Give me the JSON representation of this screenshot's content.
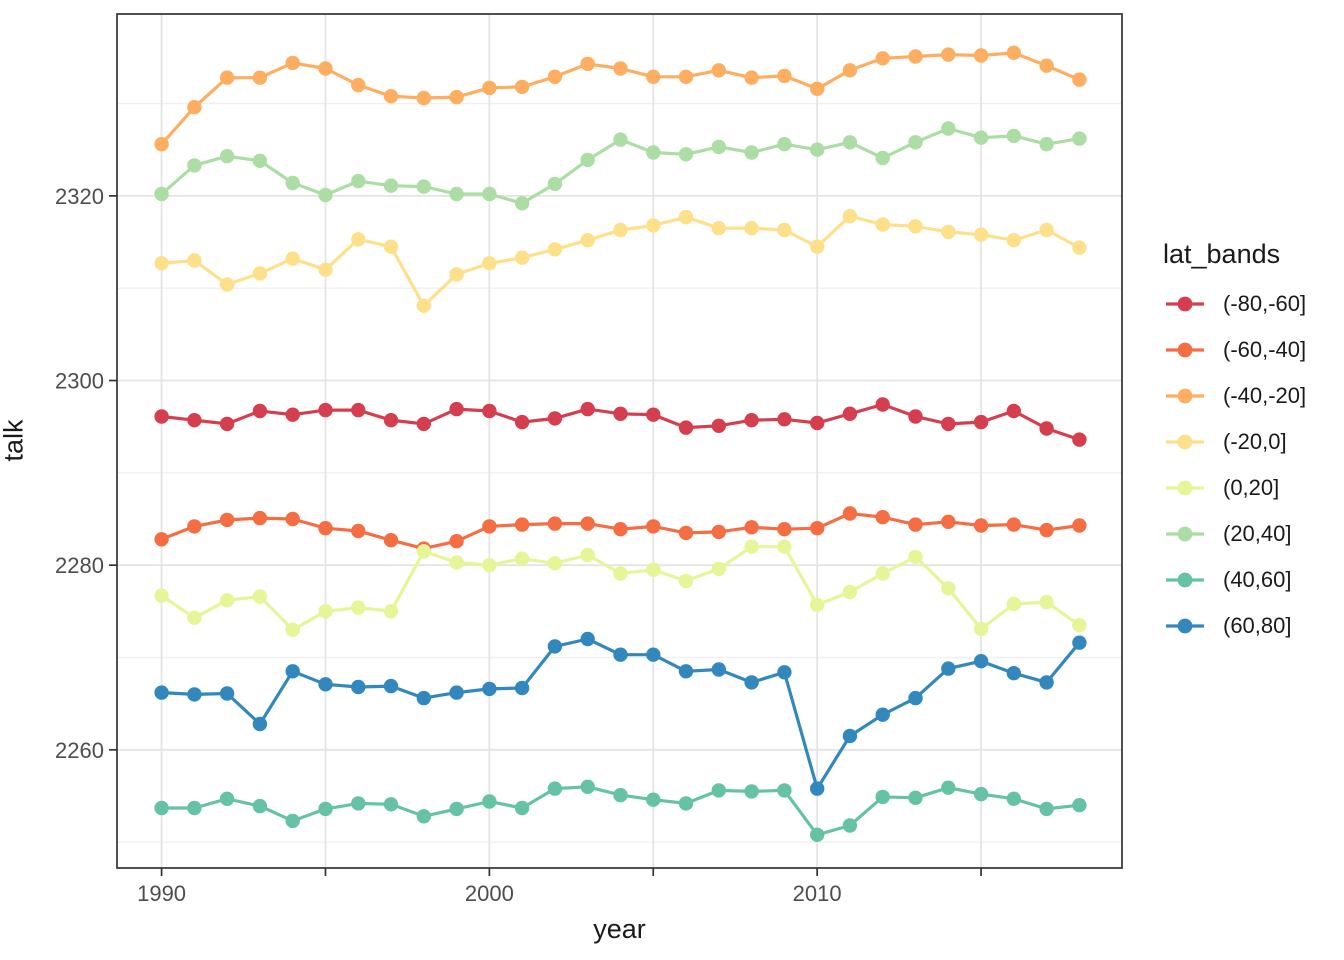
{
  "figure": {
    "background": "#ffffff",
    "panel_border_color": "#333333",
    "grid_major_color": "#e4e4e4",
    "grid_minor_color": "#f0f0f0",
    "tick_color": "#333333",
    "tick_label_color": "#4d4d4d",
    "title_color": "#1a1a1a"
  },
  "chart_data": {
    "type": "line",
    "title": "",
    "xlabel": "year",
    "ylabel": "talk",
    "legend_title": "lat_bands",
    "legend_position": "right",
    "grid": "on",
    "marker": "point",
    "x_range": [
      1988.64,
      2019.3
    ],
    "y_range": [
      2247.2,
      2339.7
    ],
    "x_ticks": [
      {
        "value": 1990,
        "label": "1990"
      },
      {
        "value": 1995,
        "label": ""
      },
      {
        "value": 2000,
        "label": "2000"
      },
      {
        "value": 2005,
        "label": ""
      },
      {
        "value": 2010,
        "label": "2010"
      },
      {
        "value": 2015,
        "label": ""
      }
    ],
    "y_ticks": [
      {
        "value": 2260,
        "label": "2260"
      },
      {
        "value": 2280,
        "label": "2280"
      },
      {
        "value": 2300,
        "label": "2300"
      },
      {
        "value": 2320,
        "label": "2320"
      }
    ],
    "y_minor_gridlines": [
      2250,
      2270,
      2290,
      2310,
      2330
    ],
    "x": [
      1990,
      1991,
      1992,
      1993,
      1994,
      1995,
      1996,
      1997,
      1998,
      1999,
      2000,
      2001,
      2002,
      2003,
      2004,
      2005,
      2006,
      2007,
      2008,
      2009,
      2010,
      2011,
      2012,
      2013,
      2014,
      2015,
      2016,
      2017,
      2018
    ],
    "series": [
      {
        "name": "(-80,-60]",
        "color": "#d53e4f",
        "values": [
          2296.1,
          2295.7,
          2295.3,
          2296.7,
          2296.3,
          2296.8,
          2296.8,
          2295.7,
          2295.3,
          2296.9,
          2296.7,
          2295.5,
          2295.9,
          2296.9,
          2296.4,
          2296.3,
          2294.9,
          2295.1,
          2295.7,
          2295.8,
          2295.4,
          2296.4,
          2297.4,
          2296.1,
          2295.3,
          2295.5,
          2296.7,
          2294.8,
          2293.6
        ]
      },
      {
        "name": "(-60,-40]",
        "color": "#f46d43",
        "values": [
          2282.8,
          2284.2,
          2284.9,
          2285.1,
          2285.0,
          2284.0,
          2283.7,
          2282.7,
          2281.8,
          2282.6,
          2284.2,
          2284.4,
          2284.5,
          2284.5,
          2283.9,
          2284.2,
          2283.5,
          2283.6,
          2284.1,
          2283.9,
          2284.0,
          2285.6,
          2285.2,
          2284.4,
          2284.7,
          2284.3,
          2284.4,
          2283.8,
          2284.3
        ]
      },
      {
        "name": "(-40,-20]",
        "color": "#fdae61",
        "values": [
          2325.6,
          2329.6,
          2332.8,
          2332.8,
          2334.4,
          2333.8,
          2332.0,
          2330.8,
          2330.6,
          2330.7,
          2331.7,
          2331.8,
          2332.9,
          2334.3,
          2333.8,
          2332.9,
          2332.9,
          2333.6,
          2332.8,
          2333.0,
          2331.6,
          2333.6,
          2334.9,
          2335.1,
          2335.3,
          2335.2,
          2335.5,
          2334.1,
          2332.6
        ]
      },
      {
        "name": "(-20,0]",
        "color": "#fee08b",
        "values": [
          2312.7,
          2313.0,
          2310.4,
          2311.6,
          2313.2,
          2312.0,
          2315.3,
          2314.5,
          2308.1,
          2311.5,
          2312.7,
          2313.3,
          2314.2,
          2315.2,
          2316.3,
          2316.8,
          2317.7,
          2316.5,
          2316.5,
          2316.3,
          2314.5,
          2317.8,
          2316.9,
          2316.7,
          2316.1,
          2315.8,
          2315.2,
          2316.3,
          2314.4
        ]
      },
      {
        "name": "(0,20]",
        "color": "#e6f598",
        "values": [
          2276.7,
          2274.3,
          2276.2,
          2276.6,
          2273.0,
          2275.0,
          2275.4,
          2275.0,
          2281.5,
          2280.3,
          2280.0,
          2280.7,
          2280.2,
          2281.1,
          2279.1,
          2279.5,
          2278.3,
          2279.6,
          2282.0,
          2282.0,
          2275.7,
          2277.1,
          2279.1,
          2280.9,
          2277.5,
          2273.1,
          2275.8,
          2276.0,
          2273.5
        ]
      },
      {
        "name": "(20,40]",
        "color": "#abdda4",
        "values": [
          2320.2,
          2323.3,
          2324.3,
          2323.8,
          2321.4,
          2320.1,
          2321.6,
          2321.1,
          2321.0,
          2320.2,
          2320.2,
          2319.2,
          2321.3,
          2323.9,
          2326.1,
          2324.7,
          2324.5,
          2325.3,
          2324.7,
          2325.6,
          2325.0,
          2325.8,
          2324.1,
          2325.8,
          2327.3,
          2326.3,
          2326.5,
          2325.6,
          2326.2
        ]
      },
      {
        "name": "(40,60]",
        "color": "#66c2a5",
        "values": [
          2253.7,
          2253.7,
          2254.7,
          2253.9,
          2252.3,
          2253.6,
          2254.2,
          2254.1,
          2252.8,
          2253.6,
          2254.4,
          2253.7,
          2255.8,
          2256.0,
          2255.1,
          2254.6,
          2254.2,
          2255.6,
          2255.5,
          2255.6,
          2250.8,
          2251.8,
          2254.9,
          2254.8,
          2255.9,
          2255.2,
          2254.7,
          2253.6,
          2254.0
        ]
      },
      {
        "name": "(60,80]",
        "color": "#3288bd",
        "values": [
          2266.2,
          2266.0,
          2266.1,
          2262.8,
          2268.5,
          2267.1,
          2266.8,
          2266.9,
          2265.6,
          2266.2,
          2266.6,
          2266.7,
          2271.2,
          2272.0,
          2270.3,
          2270.3,
          2268.5,
          2268.7,
          2267.3,
          2268.4,
          2255.8,
          2261.5,
          2263.8,
          2265.6,
          2268.8,
          2269.6,
          2268.3,
          2267.3,
          2271.6
        ]
      }
    ]
  }
}
